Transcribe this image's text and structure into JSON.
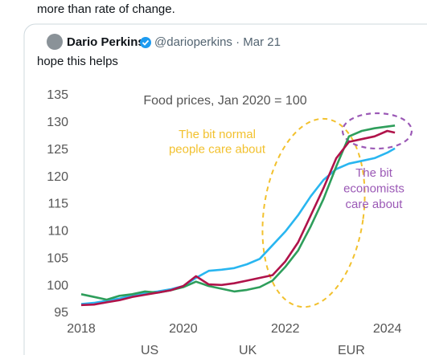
{
  "header_text": "more than rate of change.",
  "quote": {
    "author": "Dario Perkins",
    "meta": "@darioperkins · Mar 21",
    "text": "hope this helps"
  },
  "chart_data": {
    "type": "line",
    "title": "Food prices, Jan 2020 = 100",
    "x": [
      2018,
      2018.25,
      2018.5,
      2018.75,
      2019,
      2019.25,
      2019.5,
      2019.75,
      2020,
      2020.25,
      2020.5,
      2020.75,
      2021,
      2021.25,
      2021.5,
      2021.75,
      2022,
      2022.25,
      2022.5,
      2022.75,
      2023,
      2023.25,
      2023.5,
      2023.75,
      2024,
      2024.15
    ],
    "series": [
      {
        "name": "US",
        "color": "#29b6f0",
        "values": [
          96.7,
          96.9,
          97.3,
          97.7,
          98.3,
          98.7,
          99.0,
          99.4,
          100.0,
          101.5,
          102.8,
          103.0,
          103.3,
          104.0,
          105.0,
          107.5,
          110.0,
          113.0,
          116.5,
          119.5,
          121.5,
          122.5,
          123.0,
          123.5,
          124.5,
          125.3
        ]
      },
      {
        "name": "UK",
        "color": "#2e9e5b",
        "values": [
          98.5,
          98.0,
          97.5,
          98.2,
          98.5,
          99.0,
          98.8,
          99.2,
          99.8,
          100.8,
          100.0,
          99.5,
          99.0,
          99.3,
          99.8,
          101.0,
          103.5,
          106.5,
          111.0,
          116.0,
          122.0,
          127.5,
          128.5,
          129.0,
          129.3,
          129.5
        ]
      },
      {
        "name": "EUR",
        "color": "#b0134a",
        "values": [
          96.5,
          96.6,
          97.0,
          97.4,
          98.0,
          98.4,
          98.8,
          99.2,
          100.0,
          101.8,
          100.3,
          100.2,
          100.5,
          101.0,
          101.5,
          102.0,
          104.5,
          108.0,
          113.0,
          118.0,
          123.5,
          126.5,
          127.0,
          127.5,
          128.5,
          128.2
        ]
      }
    ],
    "xlim": [
      2018,
      2024.4
    ],
    "xticks": [
      2018,
      2020,
      2022,
      2024
    ],
    "ylim": [
      95,
      135
    ],
    "yticks": [
      95,
      100,
      105,
      110,
      115,
      120,
      125,
      130,
      135
    ],
    "grid": false,
    "annotations": [
      {
        "lines": [
          "The bit normal",
          "people care about"
        ],
        "color": "#f2c12e"
      },
      {
        "lines": [
          "The bit",
          "economists",
          "care about"
        ],
        "color": "#9b59b6"
      }
    ]
  }
}
